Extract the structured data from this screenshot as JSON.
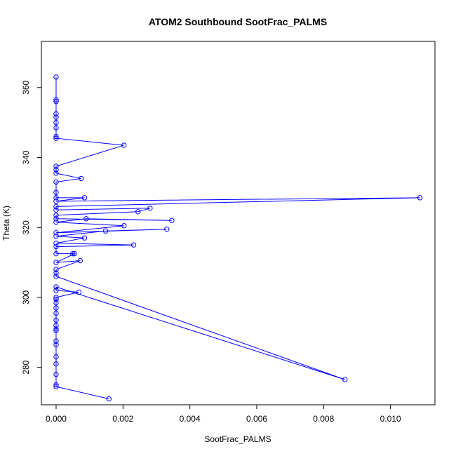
{
  "chart_data": {
    "type": "line",
    "title": "ATOM2 Southbound SootFrac_PALMS",
    "xlabel": "SootFrac_PALMS",
    "ylabel": "Theta (K)",
    "xlim": [
      -0.00044,
      0.01133
    ],
    "ylim": [
      269.3,
      373.2
    ],
    "x_ticks": [
      0.0,
      0.002,
      0.004,
      0.006,
      0.008,
      0.01
    ],
    "x_tick_labels": [
      "0.000",
      "0.002",
      "0.004",
      "0.006",
      "0.008",
      "0.010"
    ],
    "y_ticks": [
      280,
      300,
      320,
      340,
      360
    ],
    "y_tick_labels": [
      "280",
      "300",
      "320",
      "340",
      "360"
    ],
    "grid": false,
    "series": [
      {
        "color": "#0000ff",
        "marker": "open-circle",
        "points": [
          [
            0.0,
            363.0
          ],
          [
            0.0,
            356.5
          ],
          [
            0.0,
            356.0
          ],
          [
            0.0,
            352.5
          ],
          [
            0.0,
            351.5
          ],
          [
            0.0,
            350.0
          ],
          [
            0.0,
            348.5
          ],
          [
            0.0,
            346.0
          ],
          [
            0.0,
            345.5
          ],
          [
            0.00203,
            343.5
          ],
          [
            0.0,
            337.5
          ],
          [
            0.0,
            336.5
          ],
          [
            0.0,
            335.5
          ],
          [
            0.00075,
            334.0
          ],
          [
            0.0,
            333.0
          ],
          [
            0.0,
            330.0
          ],
          [
            0.0,
            328.5
          ],
          [
            0.00085,
            328.5
          ],
          [
            0.0,
            327.5
          ],
          [
            0.01088,
            328.5
          ],
          [
            0.0,
            326.0
          ],
          [
            0.0,
            325.0
          ],
          [
            0.00281,
            325.5
          ],
          [
            0.00245,
            324.5
          ],
          [
            0.0,
            323.5
          ],
          [
            0.0,
            322.5
          ],
          [
            0.00346,
            322.0
          ],
          [
            0.0009,
            322.5
          ],
          [
            0.0,
            321.5
          ],
          [
            0.00203,
            320.5
          ],
          [
            0.0,
            318.5
          ],
          [
            0.00331,
            319.5
          ],
          [
            0.00148,
            319.0
          ],
          [
            0.0,
            317.5
          ],
          [
            0.00085,
            317.0
          ],
          [
            0.0,
            315.5
          ],
          [
            0.00232,
            315.0
          ],
          [
            0.0,
            314.5
          ],
          [
            0.0,
            312.5
          ],
          [
            0.0005,
            312.5
          ],
          [
            0.00055,
            312.5
          ],
          [
            0.0,
            310.0
          ],
          [
            0.00072,
            310.5
          ],
          [
            0.0,
            308.0
          ],
          [
            0.0,
            307.0
          ],
          [
            0.0,
            306.0
          ],
          [
            0.00864,
            276.5
          ],
          [
            0.0,
            303.0
          ],
          [
            0.0,
            302.0
          ],
          [
            0.00068,
            301.5
          ],
          [
            0.0,
            300.0
          ],
          [
            0.0,
            299.5
          ],
          [
            0.0,
            298.5
          ],
          [
            0.0,
            297.0
          ],
          [
            0.0,
            295.5
          ],
          [
            0.0,
            293.5
          ],
          [
            0.0,
            292.0
          ],
          [
            0.0,
            291.0
          ],
          [
            0.0,
            290.5
          ],
          [
            0.0,
            287.5
          ],
          [
            0.0,
            286.5
          ],
          [
            0.0,
            283.0
          ],
          [
            0.0,
            281.0
          ],
          [
            0.0,
            278.0
          ],
          [
            0.0,
            275.0
          ],
          [
            0.0,
            274.5
          ],
          [
            0.00158,
            271.0
          ]
        ]
      }
    ]
  }
}
